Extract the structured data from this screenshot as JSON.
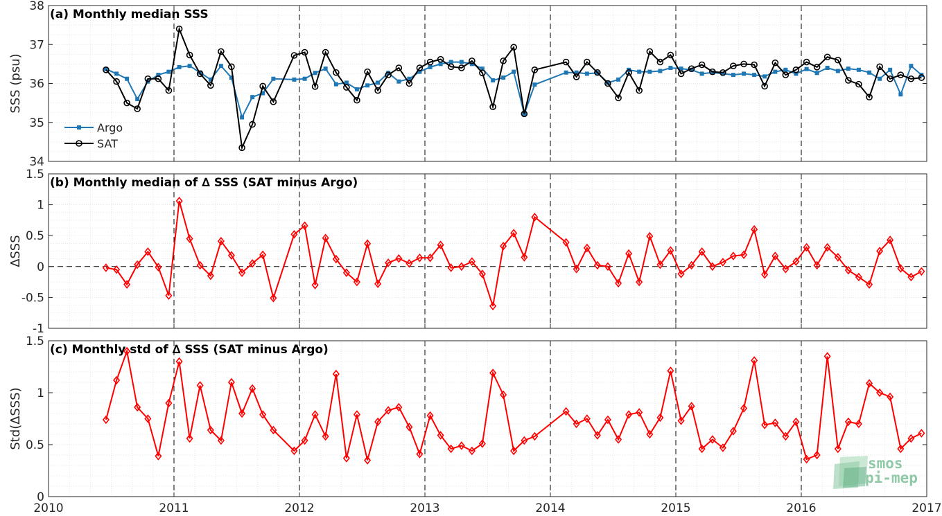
{
  "chart_data": [
    {
      "type": "line",
      "title": "(a) Monthly median SSS",
      "xlabel": "",
      "ylabel": "SSS (psu)",
      "xlim": [
        "2010",
        "2017"
      ],
      "ylim": [
        34,
        38
      ],
      "xticks": [
        "2010",
        "2011",
        "2012",
        "2013",
        "2014",
        "2015",
        "2016",
        "2017"
      ],
      "yticks": [
        "34",
        "35",
        "36",
        "37",
        "38"
      ],
      "grid": "minor dotted",
      "year_lines": "dashed at each January",
      "legend": "lower-left",
      "series": [
        {
          "name": "Argo",
          "color": "#1f77b4",
          "marker": "filled square",
          "x": [
            2010.458,
            2010.542,
            2010.625,
            2010.708,
            2010.792,
            2010.875,
            2010.958,
            2011.042,
            2011.125,
            2011.208,
            2011.292,
            2011.375,
            2011.458,
            2011.542,
            2011.625,
            2011.708,
            2011.792,
            2011.958,
            2012.042,
            2012.125,
            2012.208,
            2012.292,
            2012.375,
            2012.458,
            2012.542,
            2012.625,
            2012.708,
            2012.792,
            2012.875,
            2012.958,
            2013.042,
            2013.125,
            2013.208,
            2013.292,
            2013.375,
            2013.458,
            2013.542,
            2013.625,
            2013.708,
            2013.792,
            2013.875,
            2014.125,
            2014.208,
            2014.292,
            2014.375,
            2014.458,
            2014.542,
            2014.625,
            2014.708,
            2014.792,
            2014.875,
            2014.958,
            2015.042,
            2015.125,
            2015.208,
            2015.292,
            2015.375,
            2015.458,
            2015.542,
            2015.625,
            2015.708,
            2015.792,
            2015.875,
            2015.958,
            2016.042,
            2016.125,
            2016.208,
            2016.292,
            2016.375,
            2016.458,
            2016.542,
            2016.625,
            2016.708,
            2016.792,
            2016.875,
            2016.958
          ],
          "y": [
            36.37,
            36.25,
            36.12,
            35.6,
            36.05,
            36.22,
            36.3,
            36.42,
            36.45,
            36.28,
            36.1,
            36.45,
            36.15,
            35.13,
            35.65,
            35.75,
            36.12,
            36.1,
            36.12,
            36.27,
            36.38,
            35.98,
            36.02,
            35.85,
            35.95,
            36.02,
            36.27,
            36.05,
            36.12,
            36.3,
            36.42,
            36.5,
            36.55,
            36.55,
            36.5,
            36.38,
            36.08,
            36.15,
            36.3,
            35.22,
            35.97,
            36.28,
            36.28,
            36.25,
            36.27,
            36.02,
            36.1,
            36.35,
            36.3,
            36.3,
            36.32,
            36.4,
            36.38,
            36.35,
            36.25,
            36.28,
            36.25,
            36.22,
            36.25,
            36.22,
            36.18,
            36.3,
            36.35,
            36.25,
            36.37,
            36.27,
            36.4,
            36.32,
            36.38,
            36.35,
            36.28,
            36.12,
            36.35,
            35.72,
            36.45,
            36.22
          ]
        },
        {
          "name": "SAT",
          "color": "#000000",
          "marker": "open circle",
          "x": [
            2010.458,
            2010.542,
            2010.625,
            2010.708,
            2010.792,
            2010.875,
            2010.958,
            2011.042,
            2011.125,
            2011.208,
            2011.292,
            2011.375,
            2011.458,
            2011.542,
            2011.625,
            2011.708,
            2011.792,
            2011.958,
            2012.042,
            2012.125,
            2012.208,
            2012.292,
            2012.375,
            2012.458,
            2012.542,
            2012.625,
            2012.708,
            2012.792,
            2012.875,
            2012.958,
            2013.042,
            2013.125,
            2013.208,
            2013.292,
            2013.375,
            2013.458,
            2013.542,
            2013.625,
            2013.708,
            2013.792,
            2013.875,
            2014.125,
            2014.208,
            2014.292,
            2014.375,
            2014.458,
            2014.542,
            2014.625,
            2014.708,
            2014.792,
            2014.875,
            2014.958,
            2015.042,
            2015.125,
            2015.208,
            2015.292,
            2015.375,
            2015.458,
            2015.542,
            2015.625,
            2015.708,
            2015.792,
            2015.875,
            2015.958,
            2016.042,
            2016.125,
            2016.208,
            2016.292,
            2016.375,
            2016.458,
            2016.542,
            2016.625,
            2016.708,
            2016.792,
            2016.875,
            2016.958
          ],
          "y": [
            36.35,
            36.05,
            35.5,
            35.35,
            36.12,
            36.12,
            35.82,
            37.4,
            36.73,
            36.25,
            35.95,
            36.82,
            36.43,
            34.35,
            34.95,
            35.93,
            35.53,
            36.72,
            36.8,
            35.92,
            36.8,
            36.28,
            35.9,
            35.57,
            36.3,
            35.82,
            36.22,
            36.4,
            36.0,
            36.4,
            36.55,
            36.62,
            36.43,
            36.4,
            36.58,
            36.27,
            35.4,
            36.58,
            36.93,
            35.22,
            36.35,
            36.55,
            36.17,
            36.55,
            36.28,
            36.0,
            35.63,
            36.28,
            35.82,
            36.82,
            36.55,
            36.73,
            36.25,
            36.38,
            36.48,
            36.3,
            36.28,
            36.45,
            36.5,
            36.48,
            35.93,
            36.53,
            36.22,
            36.35,
            36.55,
            36.42,
            36.68,
            36.6,
            36.08,
            35.98,
            35.65,
            36.43,
            36.12,
            36.22,
            36.12,
            36.15
          ]
        }
      ]
    },
    {
      "type": "line",
      "title": "(b) Monthly median of ∆ SSS (SAT minus Argo)",
      "xlabel": "",
      "ylabel": "∆SSS",
      "xlim": [
        "2010",
        "2017"
      ],
      "ylim": [
        -1,
        1.5
      ],
      "xticks": [
        "2010",
        "2011",
        "2012",
        "2013",
        "2014",
        "2015",
        "2016",
        "2017"
      ],
      "yticks": [
        "-1",
        "-0.5",
        "0",
        "0.5",
        "1",
        "1.5"
      ],
      "grid": "minor dotted",
      "reference_line": "dashed at 0",
      "series": [
        {
          "color": "#ff0000",
          "marker": "open diamond",
          "x": [
            2010.458,
            2010.542,
            2010.625,
            2010.708,
            2010.792,
            2010.875,
            2010.958,
            2011.042,
            2011.125,
            2011.208,
            2011.292,
            2011.375,
            2011.458,
            2011.542,
            2011.625,
            2011.708,
            2011.792,
            2011.958,
            2012.042,
            2012.125,
            2012.208,
            2012.292,
            2012.375,
            2012.458,
            2012.542,
            2012.625,
            2012.708,
            2012.792,
            2012.875,
            2012.958,
            2013.042,
            2013.125,
            2013.208,
            2013.292,
            2013.375,
            2013.458,
            2013.542,
            2013.625,
            2013.708,
            2013.792,
            2013.875,
            2014.125,
            2014.208,
            2014.292,
            2014.375,
            2014.458,
            2014.542,
            2014.625,
            2014.708,
            2014.792,
            2014.875,
            2014.958,
            2015.042,
            2015.125,
            2015.208,
            2015.292,
            2015.375,
            2015.458,
            2015.542,
            2015.625,
            2015.708,
            2015.792,
            2015.875,
            2015.958,
            2016.042,
            2016.125,
            2016.208,
            2016.292,
            2016.375,
            2016.458,
            2016.542,
            2016.625,
            2016.708,
            2016.792,
            2016.875,
            2016.958
          ],
          "y": [
            -0.02,
            -0.05,
            -0.29,
            0.03,
            0.24,
            -0.01,
            -0.47,
            1.06,
            0.45,
            0.02,
            -0.15,
            0.41,
            0.18,
            -0.1,
            0.05,
            0.19,
            -0.51,
            0.52,
            0.66,
            -0.3,
            0.46,
            0.12,
            -0.1,
            -0.25,
            0.37,
            -0.28,
            0.06,
            0.13,
            0.05,
            0.14,
            0.14,
            0.35,
            -0.02,
            0.0,
            0.08,
            -0.12,
            -0.64,
            0.33,
            0.54,
            0.15,
            0.8,
            0.39,
            -0.04,
            0.3,
            0.02,
            0.0,
            -0.27,
            0.21,
            -0.25,
            0.49,
            0.03,
            0.26,
            -0.12,
            0.02,
            0.24,
            0.0,
            0.07,
            0.17,
            0.19,
            0.6,
            -0.13,
            0.17,
            -0.04,
            0.08,
            0.31,
            0.02,
            0.31,
            0.15,
            -0.06,
            -0.17,
            -0.29,
            0.25,
            0.43,
            -0.03,
            -0.17,
            -0.08
          ]
        }
      ]
    },
    {
      "type": "line",
      "title": "(c) Monthly std of ∆ SSS (SAT minus Argo)",
      "xlabel": "",
      "ylabel": "Std(∆SSS)",
      "xlim": [
        "2010",
        "2017"
      ],
      "ylim": [
        0,
        1.5
      ],
      "xticks": [
        "2010",
        "2011",
        "2012",
        "2013",
        "2014",
        "2015",
        "2016",
        "2017"
      ],
      "yticks": [
        "0",
        "0.5",
        "1",
        "1.5"
      ],
      "grid": "minor dotted",
      "series": [
        {
          "color": "#ff0000",
          "marker": "open diamond",
          "x": [
            2010.458,
            2010.542,
            2010.625,
            2010.708,
            2010.792,
            2010.875,
            2010.958,
            2011.042,
            2011.125,
            2011.208,
            2011.292,
            2011.375,
            2011.458,
            2011.542,
            2011.625,
            2011.708,
            2011.792,
            2011.958,
            2012.042,
            2012.125,
            2012.208,
            2012.292,
            2012.375,
            2012.458,
            2012.542,
            2012.625,
            2012.708,
            2012.792,
            2012.875,
            2012.958,
            2013.042,
            2013.125,
            2013.208,
            2013.292,
            2013.375,
            2013.458,
            2013.542,
            2013.625,
            2013.708,
            2013.792,
            2013.875,
            2014.125,
            2014.208,
            2014.292,
            2014.375,
            2014.458,
            2014.542,
            2014.625,
            2014.708,
            2014.792,
            2014.875,
            2014.958,
            2015.042,
            2015.125,
            2015.208,
            2015.292,
            2015.375,
            2015.458,
            2015.542,
            2015.625,
            2015.708,
            2015.792,
            2015.875,
            2015.958,
            2016.042,
            2016.125,
            2016.208,
            2016.292,
            2016.375,
            2016.458,
            2016.542,
            2016.625,
            2016.708,
            2016.792,
            2016.875,
            2016.958
          ],
          "y": [
            0.74,
            1.12,
            1.4,
            0.86,
            0.75,
            0.39,
            0.9,
            1.3,
            0.56,
            1.07,
            0.64,
            0.54,
            1.1,
            0.8,
            1.04,
            0.79,
            0.64,
            0.44,
            0.54,
            0.79,
            0.58,
            1.18,
            0.37,
            0.79,
            0.35,
            0.72,
            0.83,
            0.86,
            0.67,
            0.41,
            0.78,
            0.59,
            0.46,
            0.49,
            0.44,
            0.51,
            1.19,
            0.98,
            0.44,
            0.54,
            0.58,
            0.82,
            0.7,
            0.75,
            0.59,
            0.74,
            0.55,
            0.79,
            0.81,
            0.6,
            0.76,
            1.21,
            0.73,
            0.87,
            0.46,
            0.55,
            0.47,
            0.63,
            0.85,
            1.31,
            0.69,
            0.71,
            0.58,
            0.72,
            0.36,
            0.4,
            1.35,
            0.46,
            0.72,
            0.7,
            1.09,
            1.0,
            0.96,
            0.46,
            0.56,
            0.61
          ]
        }
      ]
    }
  ],
  "logo": {
    "line1": "smos",
    "line2": "pi-mep"
  }
}
